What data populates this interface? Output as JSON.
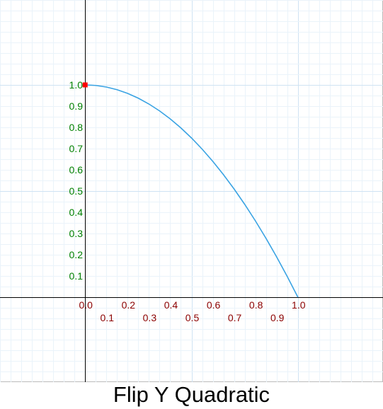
{
  "chart_data": {
    "type": "line",
    "title": "Flip Y Quadratic",
    "xlabel": "",
    "ylabel": "",
    "xlim": [
      -0.4,
      1.4
    ],
    "ylim": [
      -0.4,
      1.4
    ],
    "grid": true,
    "x_ticks": [
      "0.0",
      "0.1",
      "0.2",
      "0.3",
      "0.4",
      "0.5",
      "0.6",
      "0.7",
      "0.8",
      "0.9",
      "1.0"
    ],
    "y_ticks": [
      "0.1",
      "0.2",
      "0.3",
      "0.4",
      "0.5",
      "0.6",
      "0.7",
      "0.8",
      "0.9",
      "1.0"
    ],
    "series": [
      {
        "x": [
          0,
          0.05,
          0.1,
          0.15,
          0.2,
          0.25,
          0.3,
          0.35,
          0.4,
          0.45,
          0.5,
          0.55,
          0.6,
          0.65,
          0.7,
          0.75,
          0.8,
          0.85,
          0.9,
          0.95,
          1.0
        ],
        "y": [
          1.0,
          0.9975,
          0.99,
          0.9775,
          0.96,
          0.9375,
          0.91,
          0.8775,
          0.84,
          0.7975,
          0.75,
          0.6975,
          0.64,
          0.5775,
          0.51,
          0.4375,
          0.36,
          0.2775,
          0.19,
          0.0975,
          0.0
        ]
      }
    ],
    "marker_point": [
      0,
      1.0
    ],
    "colors": {
      "curve": "#3aa3e3",
      "marker": "#ff0000",
      "x_tick_label": "#8b0000",
      "y_tick_label": "#008000",
      "axis": "#000000",
      "grid_major": "#cfe3f3",
      "grid_minor": "#eaf3fa",
      "frame": "#bbbbbb"
    }
  }
}
